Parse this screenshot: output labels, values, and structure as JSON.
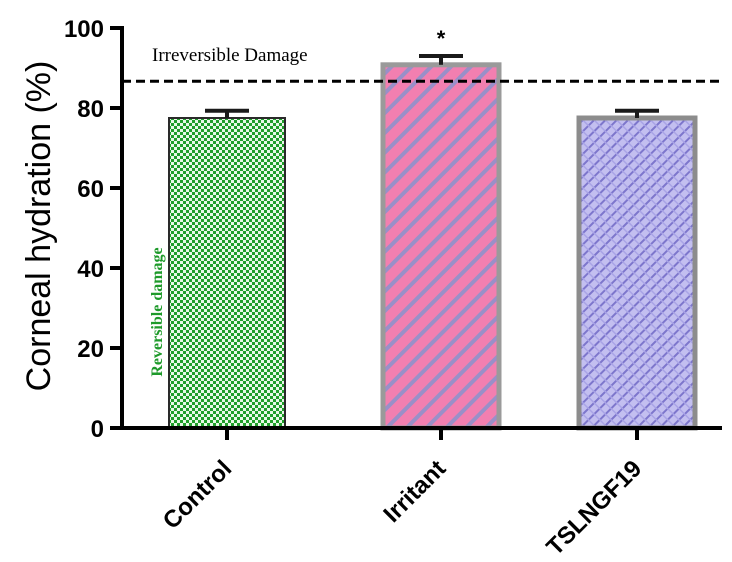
{
  "chart_data": {
    "type": "bar",
    "ylabel": "Corneal hydration  (%)",
    "xlabel": "",
    "ylim": [
      0,
      100
    ],
    "yticks": [
      0,
      20,
      40,
      60,
      80,
      100
    ],
    "categories": [
      "Control",
      "Irritant",
      "TSLNGF19"
    ],
    "values": [
      77.5,
      90.8,
      77.5
    ],
    "errors": [
      1.8,
      2.2,
      1.8
    ],
    "significance": [
      "",
      "*",
      ""
    ],
    "colors": {
      "Control": {
        "fill": "#1f9e2a",
        "light": "#e8f8e8",
        "border": "#2a2a2a"
      },
      "Irritant": {
        "fill": "#f27fb0",
        "stripe": "#9a8fc8",
        "border": "#9a9a9a"
      },
      "TSLNGF19": {
        "fill": "#b8b4ec",
        "stripe": "#7d76cc",
        "border": "#8c8c8c"
      }
    },
    "reference_line": {
      "y": 86.7,
      "label": "Irreversible Damage",
      "style": "dashed"
    },
    "annotations": [
      {
        "text": "Reversible damage",
        "color": "#1e9a2a"
      }
    ]
  }
}
